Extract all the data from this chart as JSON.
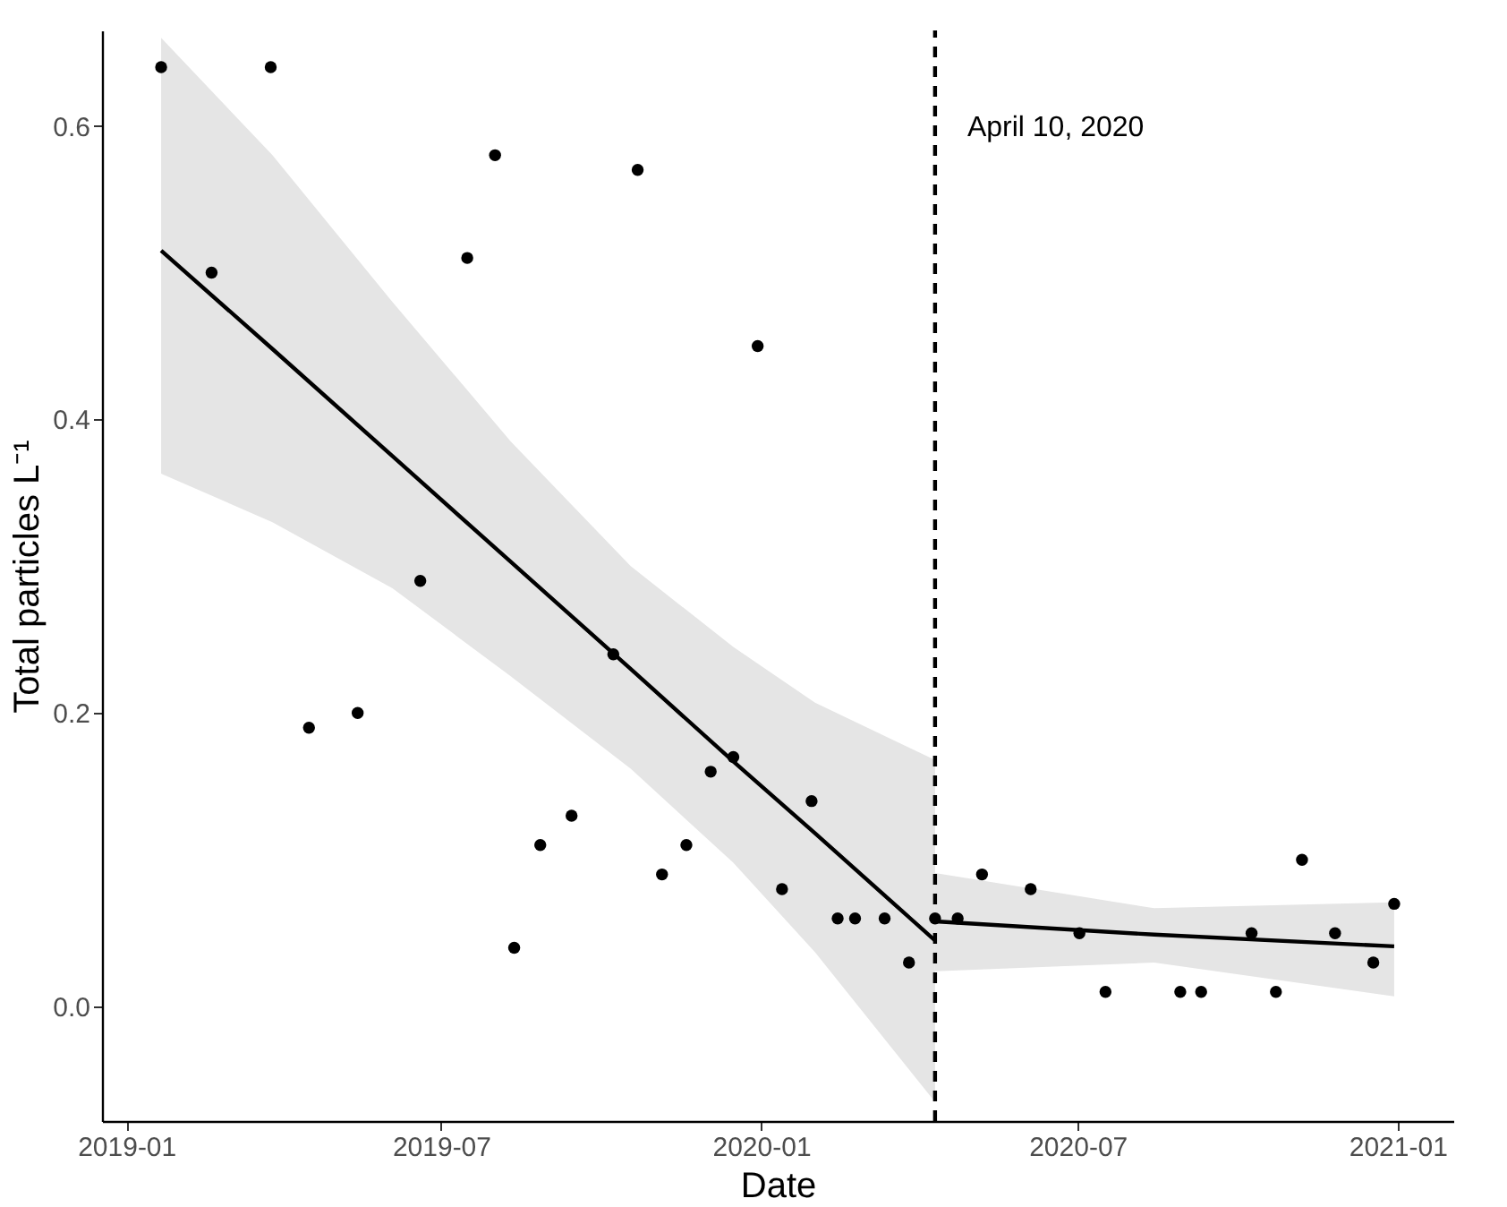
{
  "chart_data": {
    "type": "scatter",
    "xlabel": "Date",
    "ylabel": "Total particles L⁻¹",
    "xlim": [
      "2018-12-18",
      "2021-02-02"
    ],
    "xticks": [
      "2019-01",
      "2019-07",
      "2020-01",
      "2020-07",
      "2021-01"
    ],
    "ylim": [
      -0.078,
      0.665
    ],
    "yticks": [
      {
        "value": 0,
        "label": "0.0"
      },
      {
        "value": 0.2,
        "label": "0.2"
      },
      {
        "value": 0.4,
        "label": "0.4"
      },
      {
        "value": 0.6,
        "label": "0.6"
      }
    ],
    "grid": false,
    "series": [
      {
        "color": "#000000",
        "marker": "circle",
        "x": [
          "2019-01-21",
          "2019-02-19",
          "2019-03-25",
          "2019-04-16",
          "2019-05-14",
          "2019-06-19",
          "2019-07-16",
          "2019-08-01",
          "2019-08-12",
          "2019-08-27",
          "2019-09-14",
          "2019-10-08",
          "2019-10-22",
          "2019-11-05",
          "2019-11-19",
          "2019-12-03",
          "2019-12-16",
          "2019-12-30",
          "2020-01-13",
          "2020-01-30",
          "2020-02-14",
          "2020-02-24",
          "2020-03-12",
          "2020-03-26",
          "2020-04-10",
          "2020-04-23",
          "2020-05-07",
          "2020-06-04",
          "2020-07-02",
          "2020-07-17",
          "2020-08-29",
          "2020-09-10",
          "2020-10-09",
          "2020-10-23",
          "2020-11-07",
          "2020-11-26",
          "2020-12-18",
          "2020-12-30"
        ],
        "values": [
          0.64,
          0.5,
          0.64,
          0.19,
          0.2,
          0.29,
          0.51,
          0.58,
          0.04,
          0.11,
          0.13,
          0.24,
          0.57,
          0.09,
          0.11,
          0.16,
          0.17,
          0.45,
          0.08,
          0.14,
          0.06,
          0.06,
          0.06,
          0.03,
          0.06,
          0.06,
          0.09,
          0.08,
          0.05,
          0.01,
          0.01,
          0.01,
          0.05,
          0.01,
          0.1,
          0.05,
          0.03,
          0.07
        ]
      },
      {
        "type": "line",
        "color": "#000000",
        "line_style": "solid",
        "x": [
          "2019-01-21",
          "2019-03-26",
          "2019-06-03",
          "2019-08-10",
          "2019-10-18",
          "2019-12-16",
          "2020-02-01",
          "2020-04-10"
        ],
        "values": [
          0.515,
          0.448,
          0.375,
          0.303,
          0.23,
          0.167,
          0.118,
          0.045
        ],
        "lower": [
          0.363,
          0.33,
          0.285,
          0.225,
          0.162,
          0.098,
          0.037,
          -0.065
        ],
        "upper": [
          0.66,
          0.58,
          0.48,
          0.385,
          0.3,
          0.245,
          0.207,
          0.168
        ]
      },
      {
        "type": "line",
        "color": "#000000",
        "line_style": "solid",
        "x": [
          "2020-04-10",
          "2020-08-14",
          "2020-12-30"
        ],
        "values": [
          0.058,
          0.049,
          0.041
        ],
        "lower": [
          0.024,
          0.03,
          0.007
        ],
        "upper": [
          0.091,
          0.067,
          0.071
        ]
      }
    ],
    "ref_lines": [
      {
        "axis": "x",
        "value": "2020-04-10",
        "label": "April 10, 2020",
        "line_style": "dashed",
        "color": "#000000"
      }
    ]
  }
}
